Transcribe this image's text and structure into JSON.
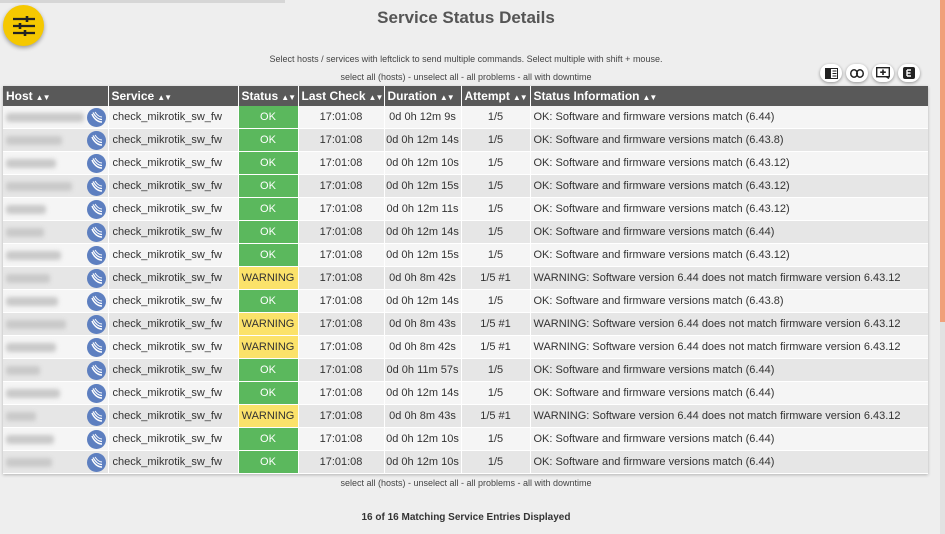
{
  "page_title": "Service Status Details",
  "hint": "Select hosts / services with leftclick to send multiple commands. Select multiple with shift + mouse.",
  "selection_links": {
    "select_all": "select all (hosts)",
    "sep": " - ",
    "unselect_all": "unselect all",
    "all_problems": "all problems",
    "all_with_downtime": "all with downtime"
  },
  "toolbar": [
    "columns-icon",
    "link-icon",
    "add-icon",
    "export-icon"
  ],
  "columns": [
    "Host",
    "Service",
    "Status",
    "Last Check",
    "Duration",
    "Attempt",
    "Status Information"
  ],
  "colors": {
    "ok": "#5bb85d",
    "warning": "#fbe26a",
    "header": "#595959",
    "fab": "#f5c800"
  },
  "rows": [
    {
      "host_blur_width": 78,
      "service": "check_mikrotik_sw_fw",
      "status": "OK",
      "last_check": "17:01:08",
      "duration": "0d 0h 12m 9s",
      "attempt": "1/5",
      "info": "OK: Software and firmware versions match (6.44)"
    },
    {
      "host_blur_width": 56,
      "service": "check_mikrotik_sw_fw",
      "status": "OK",
      "last_check": "17:01:08",
      "duration": "0d 0h 12m 14s",
      "attempt": "1/5",
      "info": "OK: Software and firmware versions match (6.43.8)"
    },
    {
      "host_blur_width": 50,
      "service": "check_mikrotik_sw_fw",
      "status": "OK",
      "last_check": "17:01:08",
      "duration": "0d 0h 12m 10s",
      "attempt": "1/5",
      "info": "OK: Software and firmware versions match (6.43.12)"
    },
    {
      "host_blur_width": 66,
      "service": "check_mikrotik_sw_fw",
      "status": "OK",
      "last_check": "17:01:08",
      "duration": "0d 0h 12m 15s",
      "attempt": "1/5",
      "info": "OK: Software and firmware versions match (6.43.12)"
    },
    {
      "host_blur_width": 40,
      "service": "check_mikrotik_sw_fw",
      "status": "OK",
      "last_check": "17:01:08",
      "duration": "0d 0h 12m 11s",
      "attempt": "1/5",
      "info": "OK: Software and firmware versions match (6.43.12)"
    },
    {
      "host_blur_width": 38,
      "service": "check_mikrotik_sw_fw",
      "status": "OK",
      "last_check": "17:01:08",
      "duration": "0d 0h 12m 14s",
      "attempt": "1/5",
      "info": "OK: Software and firmware versions match (6.44)"
    },
    {
      "host_blur_width": 55,
      "service": "check_mikrotik_sw_fw",
      "status": "OK",
      "last_check": "17:01:08",
      "duration": "0d 0h 12m 15s",
      "attempt": "1/5",
      "info": "OK: Software and firmware versions match (6.43.12)"
    },
    {
      "host_blur_width": 44,
      "service": "check_mikrotik_sw_fw",
      "status": "WARNING",
      "last_check": "17:01:08",
      "duration": "0d 0h 8m 42s",
      "attempt": "1/5 #1",
      "info": "WARNING: Software version 6.44 does not match firmware version 6.43.12"
    },
    {
      "host_blur_width": 52,
      "service": "check_mikrotik_sw_fw",
      "status": "OK",
      "last_check": "17:01:08",
      "duration": "0d 0h 12m 14s",
      "attempt": "1/5",
      "info": "OK: Software and firmware versions match (6.43.8)"
    },
    {
      "host_blur_width": 60,
      "service": "check_mikrotik_sw_fw",
      "status": "WARNING",
      "last_check": "17:01:08",
      "duration": "0d 0h 8m 43s",
      "attempt": "1/5 #1",
      "info": "WARNING: Software version 6.44 does not match firmware version 6.43.12"
    },
    {
      "host_blur_width": 50,
      "service": "check_mikrotik_sw_fw",
      "status": "WARNING",
      "last_check": "17:01:08",
      "duration": "0d 0h 8m 42s",
      "attempt": "1/5 #1",
      "info": "WARNING: Software version 6.44 does not match firmware version 6.43.12"
    },
    {
      "host_blur_width": 34,
      "service": "check_mikrotik_sw_fw",
      "status": "OK",
      "last_check": "17:01:08",
      "duration": "0d 0h 11m 57s",
      "attempt": "1/5",
      "info": "OK: Software and firmware versions match (6.44)"
    },
    {
      "host_blur_width": 54,
      "service": "check_mikrotik_sw_fw",
      "status": "OK",
      "last_check": "17:01:08",
      "duration": "0d 0h 12m 14s",
      "attempt": "1/5",
      "info": "OK: Software and firmware versions match (6.44)"
    },
    {
      "host_blur_width": 30,
      "service": "check_mikrotik_sw_fw",
      "status": "WARNING",
      "last_check": "17:01:08",
      "duration": "0d 0h 8m 43s",
      "attempt": "1/5 #1",
      "info": "WARNING: Software version 6.44 does not match firmware version 6.43.12"
    },
    {
      "host_blur_width": 48,
      "service": "check_mikrotik_sw_fw",
      "status": "OK",
      "last_check": "17:01:08",
      "duration": "0d 0h 12m 10s",
      "attempt": "1/5",
      "info": "OK: Software and firmware versions match (6.44)"
    },
    {
      "host_blur_width": 46,
      "service": "check_mikrotik_sw_fw",
      "status": "OK",
      "last_check": "17:01:08",
      "duration": "0d 0h 12m 10s",
      "attempt": "1/5",
      "info": "OK: Software and firmware versions match (6.44)"
    }
  ],
  "footer_count": "16 of 16 Matching Service Entries Displayed"
}
